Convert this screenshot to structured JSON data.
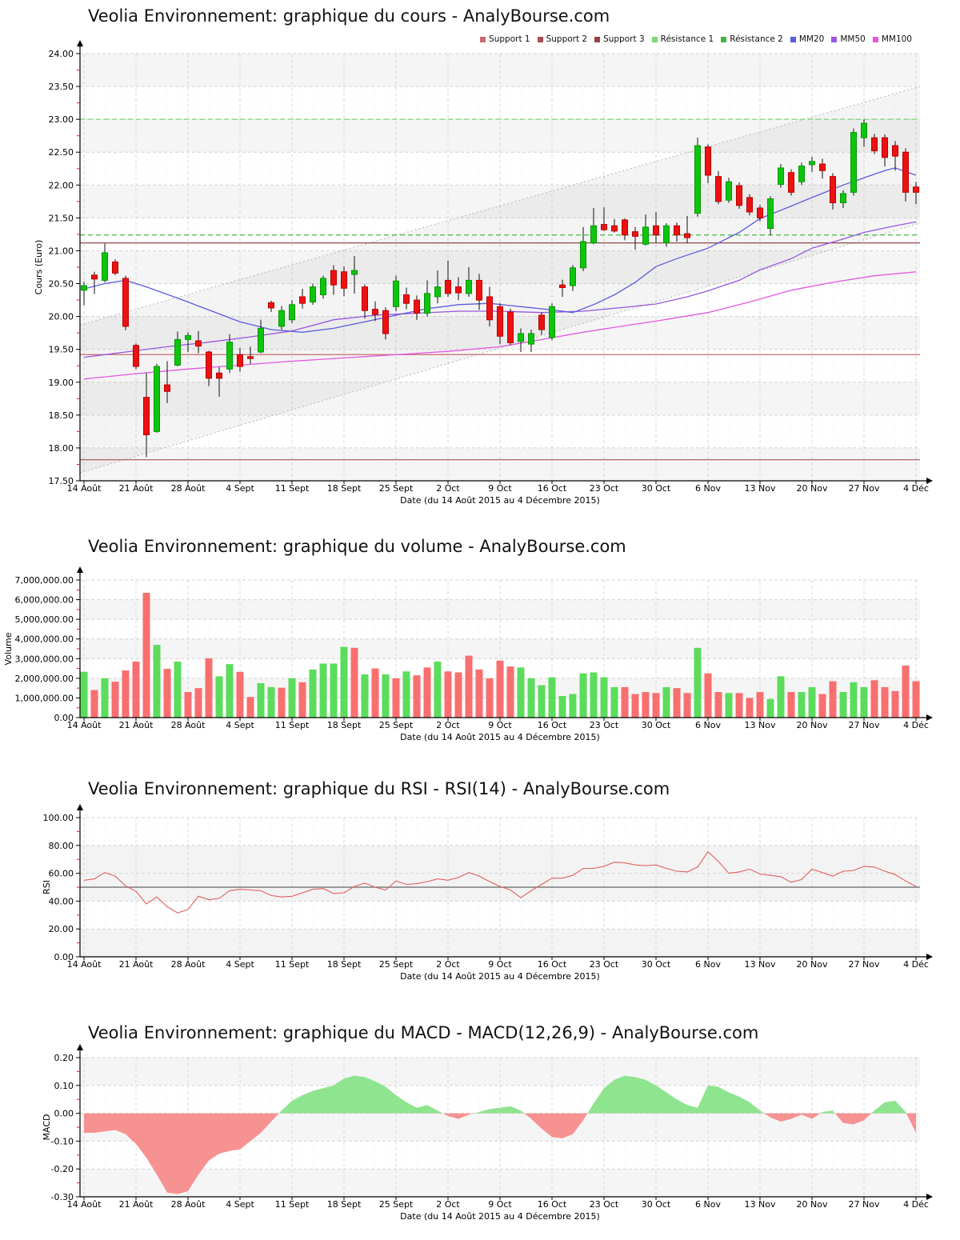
{
  "x_axis": {
    "week_labels": [
      "14 Août",
      "21 Août",
      "28 Août",
      "4 Sept",
      "11 Sept",
      "18 Sept",
      "25 Sept",
      "2 Oct",
      "9 Oct",
      "16 Oct",
      "23 Oct",
      "30 Oct",
      "6 Nov",
      "13 Nov",
      "20 Nov",
      "27 Nov",
      "4 Déc"
    ],
    "title": "Date (du 14 Août 2015 au 4 Décembre 2015)",
    "n_days": 81
  },
  "chart_data": [
    {
      "type": "candlestick",
      "title": "Veolia Environnement: graphique du cours - AnalyBourse.com",
      "ylabel": "Cours (Euro)",
      "xlabel": "Date (du 14 Août 2015 au 4 Décembre 2015)",
      "ylim": [
        17.5,
        24.0
      ],
      "ystep": 0.5,
      "colors": {
        "up": "#0FC40F",
        "up_border": "#009900",
        "down": "#EE1111",
        "down_border": "#BB0000",
        "wick": "#111111"
      },
      "legend": [
        {
          "label": "Support 1",
          "color": "#C96A6A"
        },
        {
          "label": "Support 2",
          "color": "#A85050"
        },
        {
          "label": "Support 3",
          "color": "#8F4646"
        },
        {
          "label": "Résistance 1",
          "color": "#77D877"
        },
        {
          "label": "Résistance 2",
          "color": "#44B544"
        },
        {
          "label": "MM20",
          "color": "#5B5BDE"
        },
        {
          "label": "MM50",
          "color": "#9757DE"
        },
        {
          "label": "MM100",
          "color": "#E357E3"
        }
      ],
      "levels": [
        {
          "name": "Support 1",
          "value": 19.42,
          "color": "#C96A6A",
          "style": "solid"
        },
        {
          "name": "Support 2",
          "value": 17.82,
          "color": "#A85050",
          "style": "solid"
        },
        {
          "name": "Support 3",
          "value": 21.12,
          "color": "#8F4646",
          "style": "solid"
        },
        {
          "name": "Résistance 1",
          "value": 23.0,
          "color": "#77D877",
          "style": "dashed"
        },
        {
          "name": "Résistance 2",
          "value": 21.24,
          "color": "#44B544",
          "style": "dashed"
        }
      ],
      "channel": {
        "upper": [
          [
            0,
            19.87
          ],
          [
            80,
            23.5
          ]
        ],
        "lower": [
          [
            0,
            17.62
          ],
          [
            80,
            21.42
          ]
        ],
        "line_color": "#b5b5b5",
        "fill": "rgba(150,150,150,0.10)"
      },
      "mm20_points": [
        [
          0,
          20.42
        ],
        [
          2,
          20.5
        ],
        [
          4,
          20.55
        ],
        [
          6,
          20.45
        ],
        [
          9,
          20.28
        ],
        [
          12,
          20.1
        ],
        [
          15,
          19.92
        ],
        [
          18,
          19.8
        ],
        [
          21,
          19.76
        ],
        [
          24,
          19.82
        ],
        [
          27,
          19.92
        ],
        [
          30,
          20.02
        ],
        [
          33,
          20.12
        ],
        [
          36,
          20.18
        ],
        [
          39,
          20.2
        ],
        [
          42,
          20.15
        ],
        [
          45,
          20.1
        ],
        [
          47,
          20.06
        ],
        [
          49,
          20.18
        ],
        [
          51,
          20.33
        ],
        [
          53,
          20.52
        ],
        [
          55,
          20.76
        ],
        [
          57,
          20.88
        ],
        [
          60,
          21.04
        ],
        [
          63,
          21.28
        ],
        [
          65,
          21.49
        ],
        [
          68,
          21.68
        ],
        [
          70,
          21.81
        ],
        [
          73,
          22.0
        ],
        [
          75,
          22.11
        ],
        [
          77,
          22.22
        ],
        [
          78,
          22.26
        ],
        [
          80,
          22.15
        ]
      ],
      "mm50_points": [
        [
          0,
          19.38
        ],
        [
          4,
          19.46
        ],
        [
          8,
          19.54
        ],
        [
          12,
          19.61
        ],
        [
          16,
          19.69
        ],
        [
          20,
          19.78
        ],
        [
          24,
          19.95
        ],
        [
          28,
          20.02
        ],
        [
          32,
          20.05
        ],
        [
          36,
          20.08
        ],
        [
          40,
          20.08
        ],
        [
          44,
          20.06
        ],
        [
          48,
          20.08
        ],
        [
          52,
          20.14
        ],
        [
          55,
          20.19
        ],
        [
          58,
          20.3
        ],
        [
          60,
          20.39
        ],
        [
          63,
          20.55
        ],
        [
          65,
          20.71
        ],
        [
          68,
          20.88
        ],
        [
          70,
          21.04
        ],
        [
          73,
          21.18
        ],
        [
          75,
          21.28
        ],
        [
          78,
          21.38
        ],
        [
          80,
          21.44
        ]
      ],
      "mm100_points": [
        [
          0,
          19.05
        ],
        [
          5,
          19.13
        ],
        [
          10,
          19.2
        ],
        [
          15,
          19.26
        ],
        [
          20,
          19.32
        ],
        [
          25,
          19.37
        ],
        [
          30,
          19.42
        ],
        [
          35,
          19.47
        ],
        [
          40,
          19.54
        ],
        [
          44,
          19.65
        ],
        [
          48,
          19.76
        ],
        [
          52,
          19.86
        ],
        [
          55,
          19.93
        ],
        [
          60,
          20.06
        ],
        [
          64,
          20.22
        ],
        [
          68,
          20.4
        ],
        [
          72,
          20.52
        ],
        [
          76,
          20.62
        ],
        [
          80,
          20.68
        ]
      ],
      "ohlc": [
        [
          20.4,
          20.53,
          20.17,
          20.47
        ],
        [
          20.63,
          20.68,
          20.34,
          20.57
        ],
        [
          20.55,
          21.11,
          20.52,
          20.97
        ],
        [
          20.83,
          20.87,
          20.63,
          20.66
        ],
        [
          20.58,
          20.62,
          19.79,
          19.85
        ],
        [
          19.56,
          19.59,
          19.2,
          19.24
        ],
        [
          18.77,
          19.14,
          17.86,
          18.2
        ],
        [
          18.25,
          19.28,
          18.23,
          19.24
        ],
        [
          18.96,
          19.32,
          18.68,
          18.86
        ],
        [
          19.26,
          19.77,
          19.24,
          19.65
        ],
        [
          19.65,
          19.76,
          19.46,
          19.71
        ],
        [
          19.63,
          19.78,
          19.44,
          19.55
        ],
        [
          19.46,
          19.48,
          18.94,
          19.06
        ],
        [
          19.14,
          19.23,
          18.78,
          19.06
        ],
        [
          19.2,
          19.73,
          19.14,
          19.61
        ],
        [
          19.42,
          19.52,
          19.16,
          19.24
        ],
        [
          19.39,
          19.54,
          19.28,
          19.36
        ],
        [
          19.46,
          19.95,
          19.44,
          19.82
        ],
        [
          20.21,
          20.24,
          20.07,
          20.13
        ],
        [
          19.85,
          20.16,
          19.8,
          20.09
        ],
        [
          19.95,
          20.25,
          19.9,
          20.18
        ],
        [
          20.3,
          20.42,
          20.12,
          20.2
        ],
        [
          20.22,
          20.5,
          20.18,
          20.45
        ],
        [
          20.33,
          20.62,
          20.27,
          20.58
        ],
        [
          20.7,
          20.78,
          20.33,
          20.48
        ],
        [
          20.68,
          20.76,
          20.31,
          20.43
        ],
        [
          20.64,
          20.92,
          20.35,
          20.7
        ],
        [
          20.45,
          20.49,
          19.97,
          20.09
        ],
        [
          20.11,
          20.23,
          19.93,
          20.03
        ],
        [
          20.09,
          20.14,
          19.65,
          19.74
        ],
        [
          20.15,
          20.62,
          20.08,
          20.54
        ],
        [
          20.33,
          20.44,
          20.11,
          20.2
        ],
        [
          20.25,
          20.32,
          19.95,
          20.05
        ],
        [
          20.05,
          20.55,
          20.0,
          20.35
        ],
        [
          20.3,
          20.7,
          20.2,
          20.45
        ],
        [
          20.55,
          20.85,
          20.3,
          20.35
        ],
        [
          20.45,
          20.6,
          20.25,
          20.36
        ],
        [
          20.35,
          20.75,
          20.3,
          20.55
        ],
        [
          20.55,
          20.65,
          20.1,
          20.25
        ],
        [
          20.3,
          20.45,
          19.85,
          19.95
        ],
        [
          20.15,
          20.2,
          19.58,
          19.7
        ],
        [
          20.07,
          20.12,
          19.56,
          19.6
        ],
        [
          19.62,
          19.82,
          19.46,
          19.74
        ],
        [
          19.58,
          19.8,
          19.46,
          19.74
        ],
        [
          20.02,
          20.06,
          19.72,
          19.8
        ],
        [
          19.68,
          20.2,
          19.64,
          20.15
        ],
        [
          20.48,
          20.56,
          20.3,
          20.44
        ],
        [
          20.47,
          20.78,
          20.39,
          20.74
        ],
        [
          20.74,
          21.36,
          20.69,
          21.14
        ],
        [
          21.12,
          21.65,
          21.1,
          21.38
        ],
        [
          21.4,
          21.66,
          21.3,
          21.32
        ],
        [
          21.38,
          21.48,
          21.28,
          21.3
        ],
        [
          21.47,
          21.49,
          21.16,
          21.24
        ],
        [
          21.29,
          21.36,
          21.02,
          21.22
        ],
        [
          21.1,
          21.55,
          21.08,
          21.36
        ],
        [
          21.38,
          21.59,
          21.12,
          21.24
        ],
        [
          21.12,
          21.42,
          21.06,
          21.38
        ],
        [
          21.38,
          21.43,
          21.14,
          21.24
        ],
        [
          21.26,
          21.53,
          21.12,
          21.2
        ],
        [
          21.57,
          22.72,
          21.52,
          22.6
        ],
        [
          22.58,
          22.62,
          22.03,
          22.15
        ],
        [
          22.13,
          22.21,
          21.71,
          21.75
        ],
        [
          21.77,
          22.11,
          21.73,
          22.05
        ],
        [
          21.99,
          22.04,
          21.64,
          21.69
        ],
        [
          21.81,
          21.86,
          21.54,
          21.59
        ],
        [
          21.65,
          21.7,
          21.45,
          21.5
        ],
        [
          21.34,
          21.83,
          21.24,
          21.79
        ],
        [
          22.01,
          22.32,
          21.96,
          22.26
        ],
        [
          22.19,
          22.24,
          21.84,
          21.89
        ],
        [
          22.05,
          22.34,
          22.0,
          22.29
        ],
        [
          22.31,
          22.43,
          22.2,
          22.36
        ],
        [
          22.32,
          22.4,
          22.1,
          22.22
        ],
        [
          22.13,
          22.18,
          21.63,
          21.73
        ],
        [
          21.73,
          21.92,
          21.65,
          21.87
        ],
        [
          21.89,
          22.86,
          21.84,
          22.8
        ],
        [
          22.72,
          23.0,
          22.58,
          22.94
        ],
        [
          22.72,
          22.78,
          22.47,
          22.52
        ],
        [
          22.72,
          22.77,
          22.28,
          22.42
        ],
        [
          22.6,
          22.67,
          22.22,
          22.44
        ],
        [
          22.5,
          22.56,
          21.75,
          21.89
        ],
        [
          21.97,
          22.05,
          21.71,
          21.89
        ]
      ]
    },
    {
      "type": "bar",
      "title": "Veolia Environnement: graphique du volume - AnalyBourse.com",
      "ylabel": "Volume",
      "xlabel": "Date (du 14 Août 2015 au 4 Décembre 2015)",
      "ylim": [
        0,
        7000000
      ],
      "ystep": 1000000,
      "colors": {
        "up": "#5CDC5C",
        "down": "#F96F6F"
      },
      "values": [
        2330000,
        1400000,
        2000000,
        1830000,
        2400000,
        2850000,
        6350000,
        3700000,
        2480000,
        2850000,
        1300000,
        1500000,
        3020000,
        2100000,
        2720000,
        2330000,
        1050000,
        1750000,
        1550000,
        1520000,
        2000000,
        1800000,
        2450000,
        2750000,
        2750000,
        3600000,
        3550000,
        2200000,
        2500000,
        2200000,
        2000000,
        2350000,
        2150000,
        2550000,
        2850000,
        2350000,
        2300000,
        3150000,
        2450000,
        2000000,
        2900000,
        2600000,
        2550000,
        2000000,
        1650000,
        2050000,
        1100000,
        1200000,
        2250000,
        2300000,
        2050000,
        1550000,
        1550000,
        1200000,
        1300000,
        1250000,
        1550000,
        1500000,
        1250000,
        3550000,
        2250000,
        1300000,
        1250000,
        1250000,
        1000000,
        1300000,
        950000,
        2100000,
        1300000,
        1300000,
        1550000,
        1200000,
        1850000,
        1300000,
        1800000,
        1550000,
        1900000,
        1550000,
        1350000,
        2650000,
        1850000
      ],
      "bar_color_segments": [
        "grgrr",
        "rrgrg",
        "rrrgg",
        "rrggr",
        "grggg",
        "grgrg",
        "rgrrg",
        "rrrrr",
        "rrggg",
        "ggggg",
        "ggrrr",
        "rgrrg",
        "rrgrr",
        "rggrg",
        "grrgg",
        "grrrr",
        "r"
      ]
    },
    {
      "type": "line",
      "title": "Veolia Environnement: graphique du RSI - RSI(14) - AnalyBourse.com",
      "ylabel": "RSI",
      "xlabel": "Date (du 14 Août 2015 au 4 Décembre 2015)",
      "ylim": [
        0,
        100
      ],
      "ystep": 20,
      "midline": 50,
      "line_color": "#E06060",
      "midline_color": "#666666",
      "values": [
        55,
        56,
        60.5,
        58,
        51,
        47,
        38,
        43,
        36,
        31.5,
        34,
        43.5,
        41,
        42,
        47.5,
        48.5,
        48,
        47.5,
        44,
        43,
        43.5,
        46,
        48.5,
        49,
        45.5,
        46,
        50.5,
        53,
        50,
        48,
        54.5,
        52,
        52.5,
        54,
        56,
        55,
        57,
        60.5,
        58,
        54,
        50.5,
        48,
        42.5,
        47.5,
        52,
        56.5,
        56.5,
        58.5,
        63.5,
        63.5,
        65,
        68,
        67.5,
        66,
        65.5,
        66,
        63.5,
        61.5,
        61,
        64.5,
        75.5,
        68.5,
        60,
        61,
        63,
        59.5,
        58.5,
        57.5,
        53.5,
        55.5,
        63,
        60.5,
        58,
        61.5,
        62,
        65,
        64.5,
        61.5,
        59,
        54.5,
        50.5
      ]
    },
    {
      "type": "area",
      "title": "Veolia Environnement: graphique du MACD - MACD(12,26,9) - AnalyBourse.com",
      "ylabel": "MACD",
      "xlabel": "Date (du 14 Août 2015 au 4 Décembre 2015)",
      "ylim": [
        -0.3,
        0.2
      ],
      "ystep": 0.1,
      "colors": {
        "pos": "#8FE48F",
        "neg": "#F79292"
      },
      "values": [
        -0.07,
        -0.07,
        -0.065,
        -0.06,
        -0.075,
        -0.11,
        -0.16,
        -0.22,
        -0.285,
        -0.29,
        -0.28,
        -0.22,
        -0.17,
        -0.145,
        -0.135,
        -0.13,
        -0.1,
        -0.07,
        -0.03,
        0.01,
        0.045,
        0.065,
        0.08,
        0.09,
        0.1,
        0.125,
        0.135,
        0.13,
        0.115,
        0.095,
        0.065,
        0.04,
        0.02,
        0.03,
        0.01,
        -0.01,
        -0.02,
        -0.005,
        0.005,
        0.015,
        0.02,
        0.025,
        0.01,
        -0.02,
        -0.055,
        -0.085,
        -0.09,
        -0.075,
        -0.025,
        0.035,
        0.09,
        0.12,
        0.135,
        0.13,
        0.12,
        0.1,
        0.075,
        0.05,
        0.03,
        0.02,
        0.1,
        0.095,
        0.075,
        0.06,
        0.04,
        0.01,
        -0.015,
        -0.03,
        -0.02,
        -0.005,
        -0.02,
        0.005,
        0.01,
        -0.035,
        -0.04,
        -0.025,
        0.01,
        0.04,
        0.045,
        0.005,
        -0.07
      ]
    }
  ]
}
